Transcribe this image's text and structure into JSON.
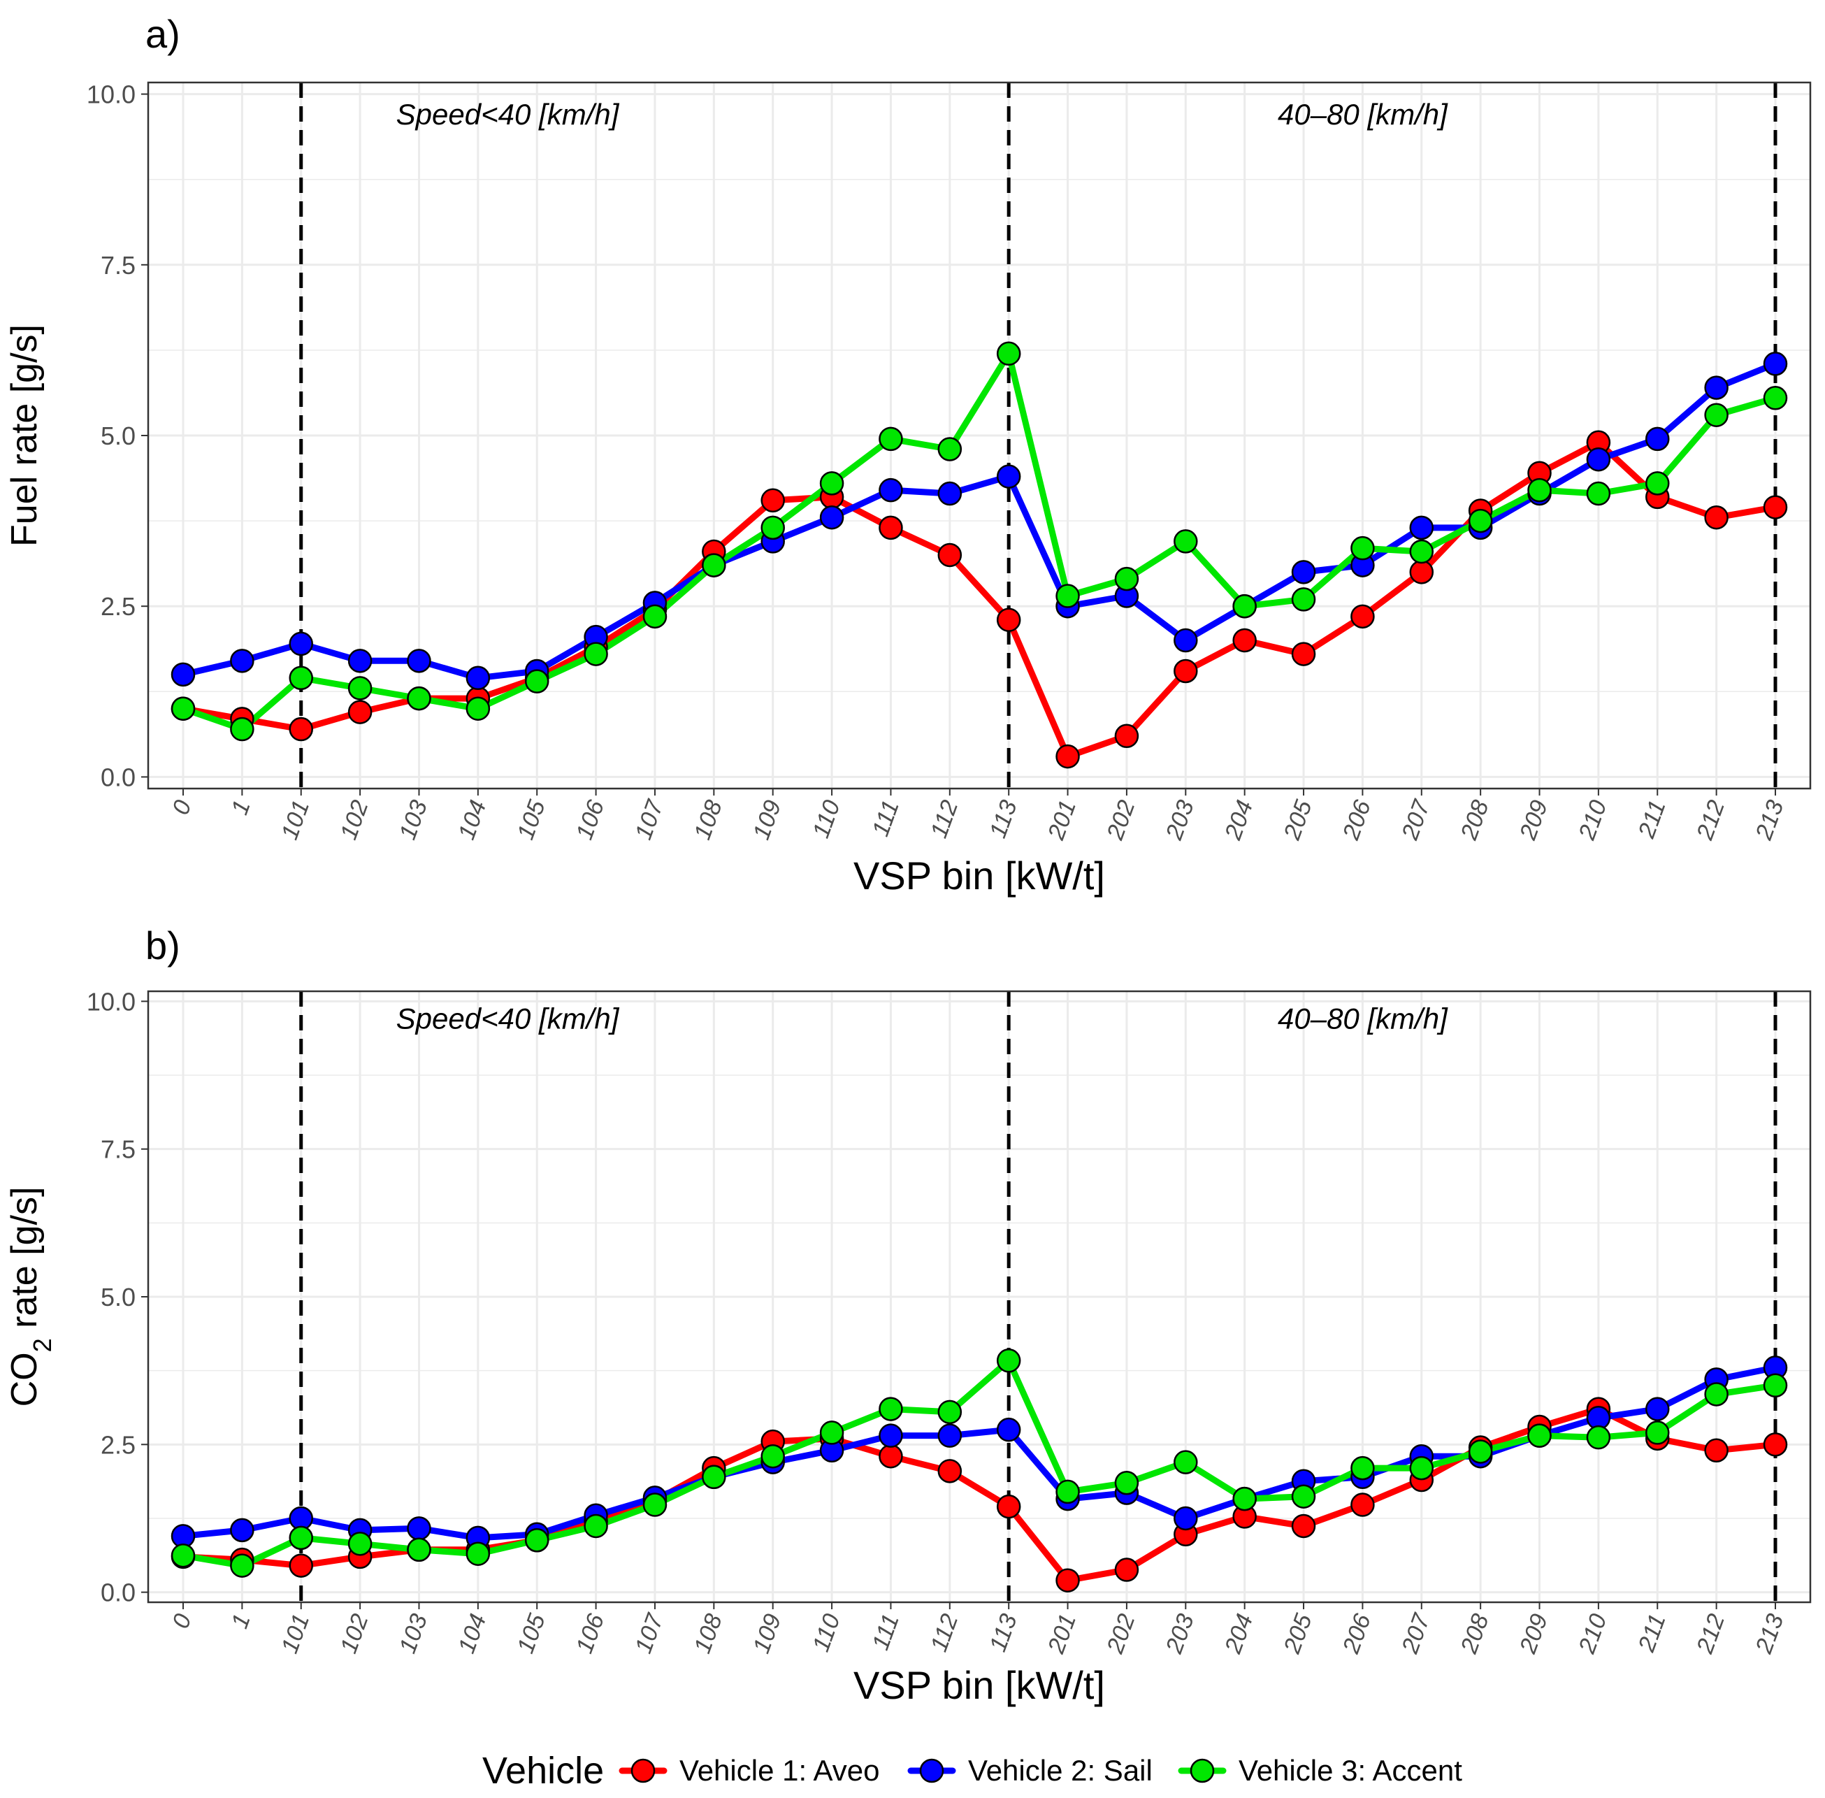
{
  "chart_data": [
    {
      "panel_label": "a)",
      "type": "line",
      "xlabel": "VSP bin [kW/t]",
      "ylabel": "Fuel  rate [g/s]",
      "ylim": [
        0,
        10
      ],
      "yticks": [
        "0.0",
        "2.5",
        "5.0",
        "7.5",
        "10.0"
      ],
      "grid": true,
      "categories": [
        "0",
        "1",
        "101",
        "102",
        "103",
        "104",
        "105",
        "106",
        "107",
        "108",
        "109",
        "110",
        "111",
        "112",
        "113",
        "201",
        "202",
        "203",
        "204",
        "205",
        "206",
        "207",
        "208",
        "209",
        "210",
        "211",
        "212",
        "213"
      ],
      "vlines_at": [
        "101",
        "113",
        "213"
      ],
      "annotations": [
        {
          "text": "Speed<40 [km/h]",
          "at_category_between": [
            "104",
            "105"
          ],
          "y": 9.7
        },
        {
          "text": "40–80 [km/h]",
          "at_category": "206",
          "y": 9.7
        }
      ],
      "series": [
        {
          "name": "Vehicle 1: Aveo",
          "values": [
            1.0,
            0.85,
            0.7,
            0.95,
            1.15,
            1.15,
            1.45,
            1.9,
            2.45,
            3.3,
            4.05,
            4.1,
            3.65,
            3.25,
            2.3,
            0.3,
            0.6,
            1.55,
            2.0,
            1.8,
            2.35,
            3.0,
            3.9,
            4.45,
            4.9,
            4.1,
            3.8,
            3.95
          ]
        },
        {
          "name": "Vehicle 2: Sail",
          "values": [
            1.5,
            1.7,
            1.95,
            1.7,
            1.7,
            1.45,
            1.55,
            2.05,
            2.55,
            3.1,
            3.45,
            3.8,
            4.2,
            4.15,
            4.4,
            2.5,
            2.65,
            2.0,
            2.5,
            3.0,
            3.1,
            3.65,
            3.65,
            4.15,
            4.65,
            4.95,
            5.7,
            6.05
          ]
        },
        {
          "name": "Vehicle 3: Accent",
          "values": [
            1.0,
            0.7,
            1.45,
            1.3,
            1.15,
            1.0,
            1.4,
            1.8,
            2.35,
            3.1,
            3.65,
            4.3,
            4.95,
            4.8,
            6.2,
            2.65,
            2.9,
            3.45,
            2.5,
            2.6,
            3.35,
            3.3,
            3.75,
            4.2,
            4.15,
            4.3,
            5.3,
            5.55
          ]
        }
      ]
    },
    {
      "panel_label": "b)",
      "type": "line",
      "xlabel": "VSP bin [kW/t]",
      "ylabel": "CO2 rate  [g/s]",
      "ylim": [
        0,
        10
      ],
      "yticks": [
        "0.0",
        "2.5",
        "5.0",
        "7.5",
        "10.0"
      ],
      "grid": true,
      "categories": [
        "0",
        "1",
        "101",
        "102",
        "103",
        "104",
        "105",
        "106",
        "107",
        "108",
        "109",
        "110",
        "111",
        "112",
        "113",
        "201",
        "202",
        "203",
        "204",
        "205",
        "206",
        "207",
        "208",
        "209",
        "210",
        "211",
        "212",
        "213"
      ],
      "vlines_at": [
        "101",
        "113",
        "213"
      ],
      "annotations": [
        {
          "text": "Speed<40 [km/h]",
          "at_category_between": [
            "104",
            "105"
          ],
          "y": 9.7
        },
        {
          "text": "40–80 [km/h]",
          "at_category": "206",
          "y": 9.7
        }
      ],
      "series": [
        {
          "name": "Vehicle 1: Aveo",
          "values": [
            0.6,
            0.55,
            0.45,
            0.6,
            0.72,
            0.72,
            0.88,
            1.2,
            1.55,
            2.1,
            2.55,
            2.6,
            2.3,
            2.05,
            1.45,
            0.2,
            0.38,
            0.98,
            1.28,
            1.12,
            1.48,
            1.9,
            2.45,
            2.8,
            3.1,
            2.6,
            2.4,
            2.5
          ]
        },
        {
          "name": "Vehicle 2: Sail",
          "values": [
            0.95,
            1.05,
            1.25,
            1.05,
            1.08,
            0.92,
            0.98,
            1.3,
            1.6,
            1.95,
            2.2,
            2.4,
            2.65,
            2.65,
            2.75,
            1.58,
            1.68,
            1.25,
            1.58,
            1.88,
            1.95,
            2.3,
            2.3,
            2.65,
            2.95,
            3.1,
            3.6,
            3.8
          ]
        },
        {
          "name": "Vehicle 3: Accent",
          "values": [
            0.62,
            0.45,
            0.92,
            0.82,
            0.72,
            0.65,
            0.88,
            1.12,
            1.48,
            1.95,
            2.3,
            2.7,
            3.1,
            3.05,
            3.92,
            1.7,
            1.85,
            2.2,
            1.58,
            1.62,
            2.1,
            2.1,
            2.38,
            2.65,
            2.62,
            2.7,
            3.35,
            3.5
          ]
        }
      ]
    }
  ],
  "legend": {
    "title": "Vehicle",
    "entries": [
      "Vehicle 1: Aveo",
      "Vehicle 2: Sail",
      "Vehicle 3: Accent"
    ]
  },
  "colors": {
    "Vehicle 1: Aveo": "#ff0000",
    "Vehicle 2: Sail": "#0000ff",
    "Vehicle 3: Accent": "#00e600",
    "grid": "#ebebeb",
    "panel_border": "#333333"
  }
}
